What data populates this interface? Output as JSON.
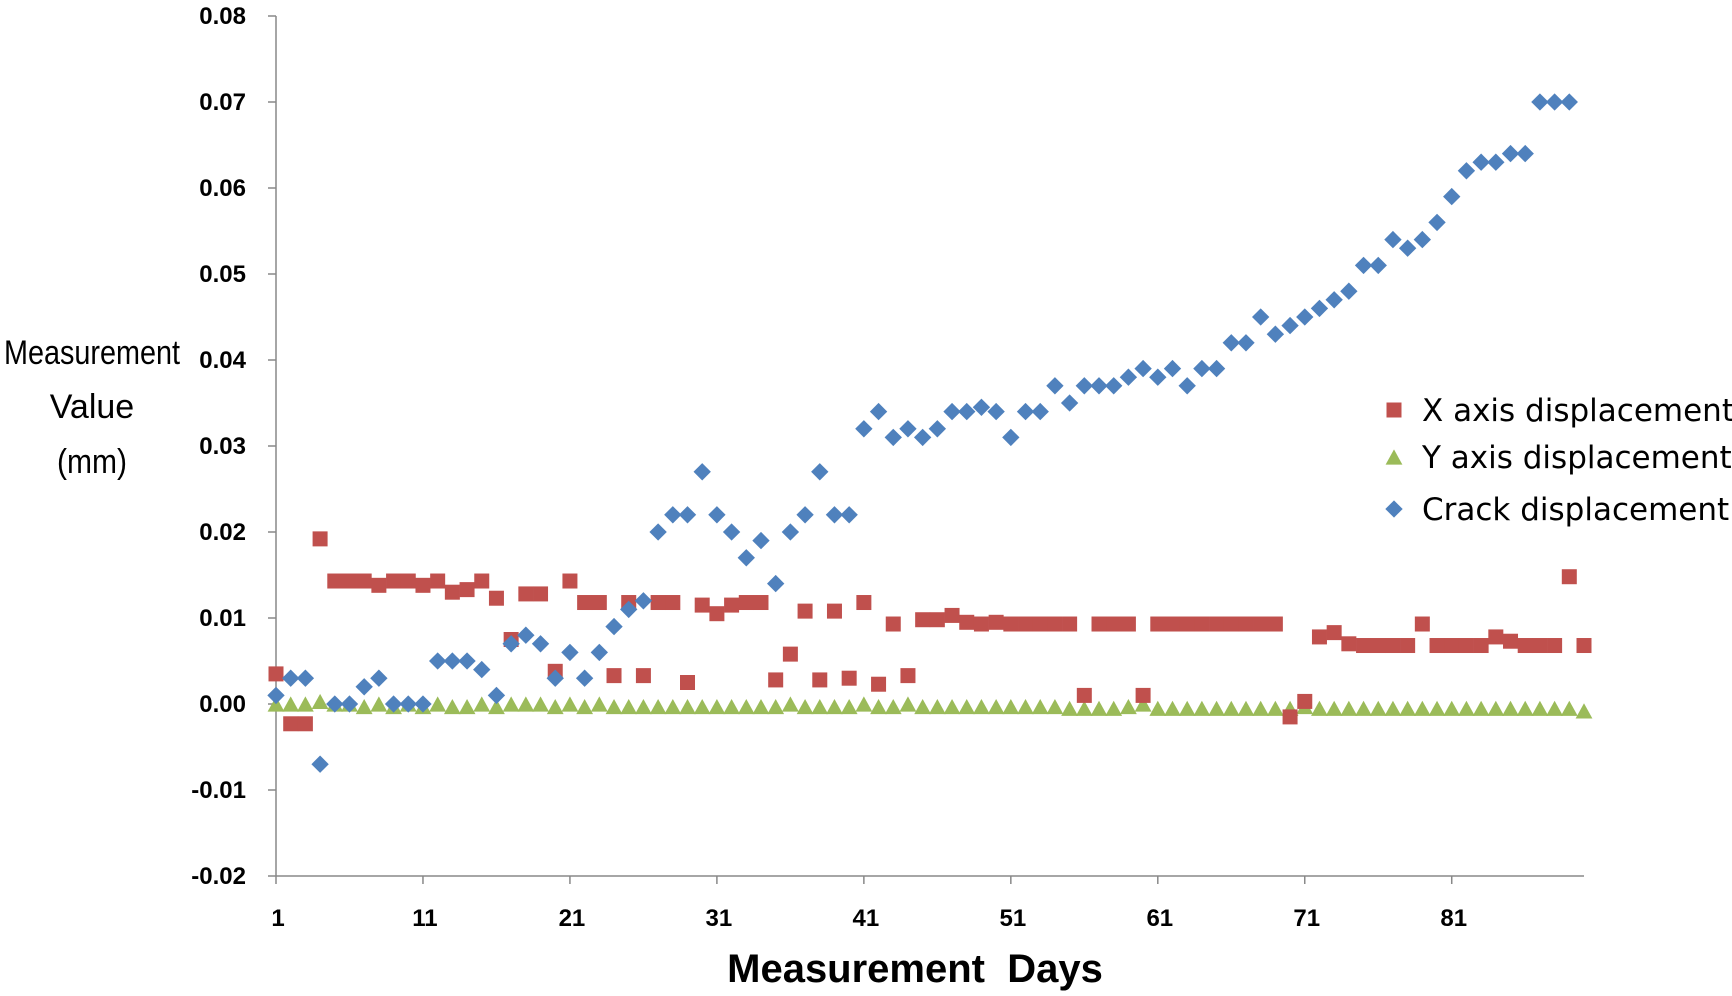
{
  "chart_data": {
    "type": "scatter",
    "title": "",
    "xlabel": "Measurement  Days",
    "ylabel_lines": [
      "Measurement",
      "Value",
      "(mm)"
    ],
    "xlim": [
      1,
      90
    ],
    "ylim": [
      -0.02,
      0.08
    ],
    "x_ticks": [
      1,
      11,
      21,
      31,
      41,
      51,
      61,
      71,
      81
    ],
    "y_ticks": [
      "0.08",
      "0.07",
      "0.06",
      "0.05",
      "0.04",
      "0.03",
      "0.02",
      "0.01",
      "0.00",
      "-0.01",
      "-0.02"
    ],
    "grid": false,
    "legend_position": "right",
    "series": [
      {
        "name": "X  axis  displacement",
        "marker": "square",
        "color": "#c0504d",
        "points": [
          [
            1,
            0.0035
          ],
          [
            2,
            -0.0023
          ],
          [
            3,
            -0.0023
          ],
          [
            4,
            0.0192
          ],
          [
            5,
            0.0143
          ],
          [
            6,
            0.0143
          ],
          [
            7,
            0.0143
          ],
          [
            8,
            0.0138
          ],
          [
            9,
            0.0143
          ],
          [
            10,
            0.0143
          ],
          [
            11,
            0.0138
          ],
          [
            12,
            0.0143
          ],
          [
            13,
            0.013
          ],
          [
            14,
            0.0133
          ],
          [
            15,
            0.0143
          ],
          [
            16,
            0.0123
          ],
          [
            17,
            0.0075
          ],
          [
            18,
            0.0128
          ],
          [
            19,
            0.0128
          ],
          [
            20,
            0.0038
          ],
          [
            21,
            0.0143
          ],
          [
            22,
            0.0118
          ],
          [
            23,
            0.0118
          ],
          [
            24,
            0.0033
          ],
          [
            25,
            0.0118
          ],
          [
            26,
            0.0033
          ],
          [
            27,
            0.0118
          ],
          [
            28,
            0.0118
          ],
          [
            29,
            0.0025
          ],
          [
            30,
            0.0115
          ],
          [
            31,
            0.0105
          ],
          [
            32,
            0.0115
          ],
          [
            33,
            0.0118
          ],
          [
            34,
            0.0118
          ],
          [
            35,
            0.0028
          ],
          [
            36,
            0.0058
          ],
          [
            37,
            0.0108
          ],
          [
            38,
            0.0028
          ],
          [
            39,
            0.0108
          ],
          [
            40,
            0.003
          ],
          [
            41,
            0.0118
          ],
          [
            42,
            0.0023
          ],
          [
            43,
            0.0093
          ],
          [
            44,
            0.0033
          ],
          [
            45,
            0.0098
          ],
          [
            46,
            0.0098
          ],
          [
            47,
            0.0103
          ],
          [
            48,
            0.0095
          ],
          [
            49,
            0.0093
          ],
          [
            50,
            0.0095
          ],
          [
            51,
            0.0093
          ],
          [
            52,
            0.0093
          ],
          [
            53,
            0.0093
          ],
          [
            54,
            0.0093
          ],
          [
            55,
            0.0093
          ],
          [
            56,
            0.001
          ],
          [
            57,
            0.0093
          ],
          [
            58,
            0.0093
          ],
          [
            59,
            0.0093
          ],
          [
            60,
            0.001
          ],
          [
            61,
            0.0093
          ],
          [
            62,
            0.0093
          ],
          [
            63,
            0.0093
          ],
          [
            64,
            0.0093
          ],
          [
            65,
            0.0093
          ],
          [
            66,
            0.0093
          ],
          [
            67,
            0.0093
          ],
          [
            68,
            0.0093
          ],
          [
            69,
            0.0093
          ],
          [
            70,
            -0.0015
          ],
          [
            71,
            0.0003
          ],
          [
            72,
            0.0078
          ],
          [
            73,
            0.0083
          ],
          [
            74,
            0.007
          ],
          [
            75,
            0.0068
          ],
          [
            76,
            0.0068
          ],
          [
            77,
            0.0068
          ],
          [
            78,
            0.0068
          ],
          [
            79,
            0.0093
          ],
          [
            80,
            0.0068
          ],
          [
            81,
            0.0068
          ],
          [
            82,
            0.0068
          ],
          [
            83,
            0.0068
          ],
          [
            84,
            0.0078
          ],
          [
            85,
            0.0073
          ],
          [
            86,
            0.0068
          ],
          [
            87,
            0.0068
          ],
          [
            88,
            0.0068
          ],
          [
            89,
            0.0148
          ],
          [
            90,
            0.0068
          ]
        ]
      },
      {
        "name": "Y  axis  displacement",
        "marker": "triangle",
        "color": "#9bbb59",
        "points": [
          [
            1,
            0.0
          ],
          [
            2,
            0.0
          ],
          [
            3,
            0.0
          ],
          [
            4,
            0.0003
          ],
          [
            5,
            0.0
          ],
          [
            6,
            0.0
          ],
          [
            7,
            -0.0003
          ],
          [
            8,
            0.0
          ],
          [
            9,
            -0.0003
          ],
          [
            10,
            0.0
          ],
          [
            11,
            -0.0003
          ],
          [
            12,
            0.0
          ],
          [
            13,
            -0.0003
          ],
          [
            14,
            -0.0003
          ],
          [
            15,
            0.0
          ],
          [
            16,
            -0.0003
          ],
          [
            17,
            0.0
          ],
          [
            18,
            0.0
          ],
          [
            19,
            0.0
          ],
          [
            20,
            -0.0003
          ],
          [
            21,
            0.0
          ],
          [
            22,
            -0.0003
          ],
          [
            23,
            0.0
          ],
          [
            24,
            -0.0003
          ],
          [
            25,
            -0.0003
          ],
          [
            26,
            -0.0003
          ],
          [
            27,
            -0.0003
          ],
          [
            28,
            -0.0003
          ],
          [
            29,
            -0.0003
          ],
          [
            30,
            -0.0003
          ],
          [
            31,
            -0.0003
          ],
          [
            32,
            -0.0003
          ],
          [
            33,
            -0.0003
          ],
          [
            34,
            -0.0003
          ],
          [
            35,
            -0.0003
          ],
          [
            36,
            0.0
          ],
          [
            37,
            -0.0003
          ],
          [
            38,
            -0.0003
          ],
          [
            39,
            -0.0003
          ],
          [
            40,
            -0.0003
          ],
          [
            41,
            0.0
          ],
          [
            42,
            -0.0003
          ],
          [
            43,
            -0.0003
          ],
          [
            44,
            0.0
          ],
          [
            45,
            -0.0003
          ],
          [
            46,
            -0.0003
          ],
          [
            47,
            -0.0003
          ],
          [
            48,
            -0.0003
          ],
          [
            49,
            -0.0003
          ],
          [
            50,
            -0.0003
          ],
          [
            51,
            -0.0003
          ],
          [
            52,
            -0.0003
          ],
          [
            53,
            -0.0003
          ],
          [
            54,
            -0.0003
          ],
          [
            55,
            -0.0005
          ],
          [
            56,
            -0.0005
          ],
          [
            57,
            -0.0005
          ],
          [
            58,
            -0.0005
          ],
          [
            59,
            -0.0003
          ],
          [
            60,
            0.0
          ],
          [
            61,
            -0.0005
          ],
          [
            62,
            -0.0005
          ],
          [
            63,
            -0.0005
          ],
          [
            64,
            -0.0005
          ],
          [
            65,
            -0.0005
          ],
          [
            66,
            -0.0005
          ],
          [
            67,
            -0.0005
          ],
          [
            68,
            -0.0005
          ],
          [
            69,
            -0.0005
          ],
          [
            70,
            -0.0005
          ],
          [
            71,
            -0.0003
          ],
          [
            72,
            -0.0005
          ],
          [
            73,
            -0.0005
          ],
          [
            74,
            -0.0005
          ],
          [
            75,
            -0.0005
          ],
          [
            76,
            -0.0005
          ],
          [
            77,
            -0.0005
          ],
          [
            78,
            -0.0005
          ],
          [
            79,
            -0.0005
          ],
          [
            80,
            -0.0005
          ],
          [
            81,
            -0.0005
          ],
          [
            82,
            -0.0005
          ],
          [
            83,
            -0.0005
          ],
          [
            84,
            -0.0005
          ],
          [
            85,
            -0.0005
          ],
          [
            86,
            -0.0005
          ],
          [
            87,
            -0.0005
          ],
          [
            88,
            -0.0005
          ],
          [
            89,
            -0.0005
          ],
          [
            90,
            -0.0008
          ]
        ]
      },
      {
        "name": "Crack  displacement",
        "marker": "diamond",
        "color": "#4f81bd",
        "points": [
          [
            1,
            0.001
          ],
          [
            2,
            0.003
          ],
          [
            3,
            0.003
          ],
          [
            4,
            -0.007
          ],
          [
            5,
            0.0
          ],
          [
            6,
            0.0
          ],
          [
            7,
            0.002
          ],
          [
            8,
            0.003
          ],
          [
            9,
            0.0
          ],
          [
            10,
            0.0
          ],
          [
            11,
            0.0
          ],
          [
            12,
            0.005
          ],
          [
            13,
            0.005
          ],
          [
            14,
            0.005
          ],
          [
            15,
            0.004
          ],
          [
            16,
            0.001
          ],
          [
            17,
            0.007
          ],
          [
            18,
            0.008
          ],
          [
            19,
            0.007
          ],
          [
            20,
            0.003
          ],
          [
            21,
            0.006
          ],
          [
            22,
            0.003
          ],
          [
            23,
            0.006
          ],
          [
            24,
            0.009
          ],
          [
            25,
            0.011
          ],
          [
            26,
            0.012
          ],
          [
            27,
            0.02
          ],
          [
            28,
            0.022
          ],
          [
            29,
            0.022
          ],
          [
            30,
            0.027
          ],
          [
            31,
            0.022
          ],
          [
            32,
            0.02
          ],
          [
            33,
            0.017
          ],
          [
            34,
            0.019
          ],
          [
            35,
            0.014
          ],
          [
            36,
            0.02
          ],
          [
            37,
            0.022
          ],
          [
            38,
            0.027
          ],
          [
            39,
            0.022
          ],
          [
            40,
            0.022
          ],
          [
            41,
            0.032
          ],
          [
            42,
            0.034
          ],
          [
            43,
            0.031
          ],
          [
            44,
            0.032
          ],
          [
            45,
            0.031
          ],
          [
            46,
            0.032
          ],
          [
            47,
            0.034
          ],
          [
            48,
            0.034
          ],
          [
            49,
            0.0345
          ],
          [
            50,
            0.034
          ],
          [
            51,
            0.031
          ],
          [
            52,
            0.034
          ],
          [
            53,
            0.034
          ],
          [
            54,
            0.037
          ],
          [
            55,
            0.035
          ],
          [
            56,
            0.037
          ],
          [
            57,
            0.037
          ],
          [
            58,
            0.037
          ],
          [
            59,
            0.038
          ],
          [
            60,
            0.039
          ],
          [
            61,
            0.038
          ],
          [
            62,
            0.039
          ],
          [
            63,
            0.037
          ],
          [
            64,
            0.039
          ],
          [
            65,
            0.039
          ],
          [
            66,
            0.042
          ],
          [
            67,
            0.042
          ],
          [
            68,
            0.045
          ],
          [
            69,
            0.043
          ],
          [
            70,
            0.044
          ],
          [
            71,
            0.045
          ],
          [
            72,
            0.046
          ],
          [
            73,
            0.047
          ],
          [
            74,
            0.048
          ],
          [
            75,
            0.051
          ],
          [
            76,
            0.051
          ],
          [
            77,
            0.054
          ],
          [
            78,
            0.053
          ],
          [
            79,
            0.054
          ],
          [
            80,
            0.056
          ],
          [
            81,
            0.059
          ],
          [
            82,
            0.062
          ],
          [
            83,
            0.063
          ],
          [
            84,
            0.063
          ],
          [
            85,
            0.064
          ],
          [
            86,
            0.064
          ],
          [
            87,
            0.07
          ],
          [
            88,
            0.07
          ],
          [
            89,
            0.07
          ]
        ]
      }
    ]
  }
}
